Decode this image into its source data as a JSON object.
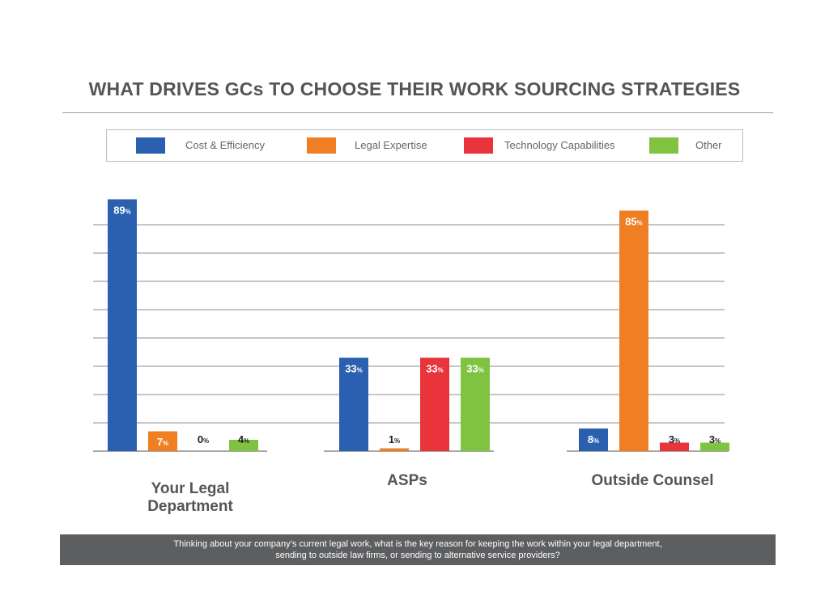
{
  "chart_data": {
    "type": "bar",
    "title": "WHAT DRIVES GCs TO CHOOSE THEIR WORK SOURCING STRATEGIES",
    "categories": [
      "Your Legal Department",
      "ASPs",
      "Outside Counsel"
    ],
    "series": [
      {
        "name": "Cost & Efficiency",
        "color": "#2b5fb0",
        "values": [
          89,
          33,
          8
        ]
      },
      {
        "name": "Legal Expertise",
        "color": "#f07f23",
        "values": [
          7,
          1,
          85
        ]
      },
      {
        "name": "Technology Capabilities",
        "color": "#e8343a",
        "values": [
          0,
          33,
          3
        ]
      },
      {
        "name": "Other",
        "color": "#80c341",
        "values": [
          4,
          33,
          3
        ]
      }
    ],
    "value_suffix": "%",
    "grid": true,
    "legend_position": "top"
  },
  "footer": {
    "line1": "Thinking about your company’s current legal work, what is the key reason for keeping the work within your legal department,",
    "line2": "sending to outside law firms, or sending to alternative service providers?"
  }
}
